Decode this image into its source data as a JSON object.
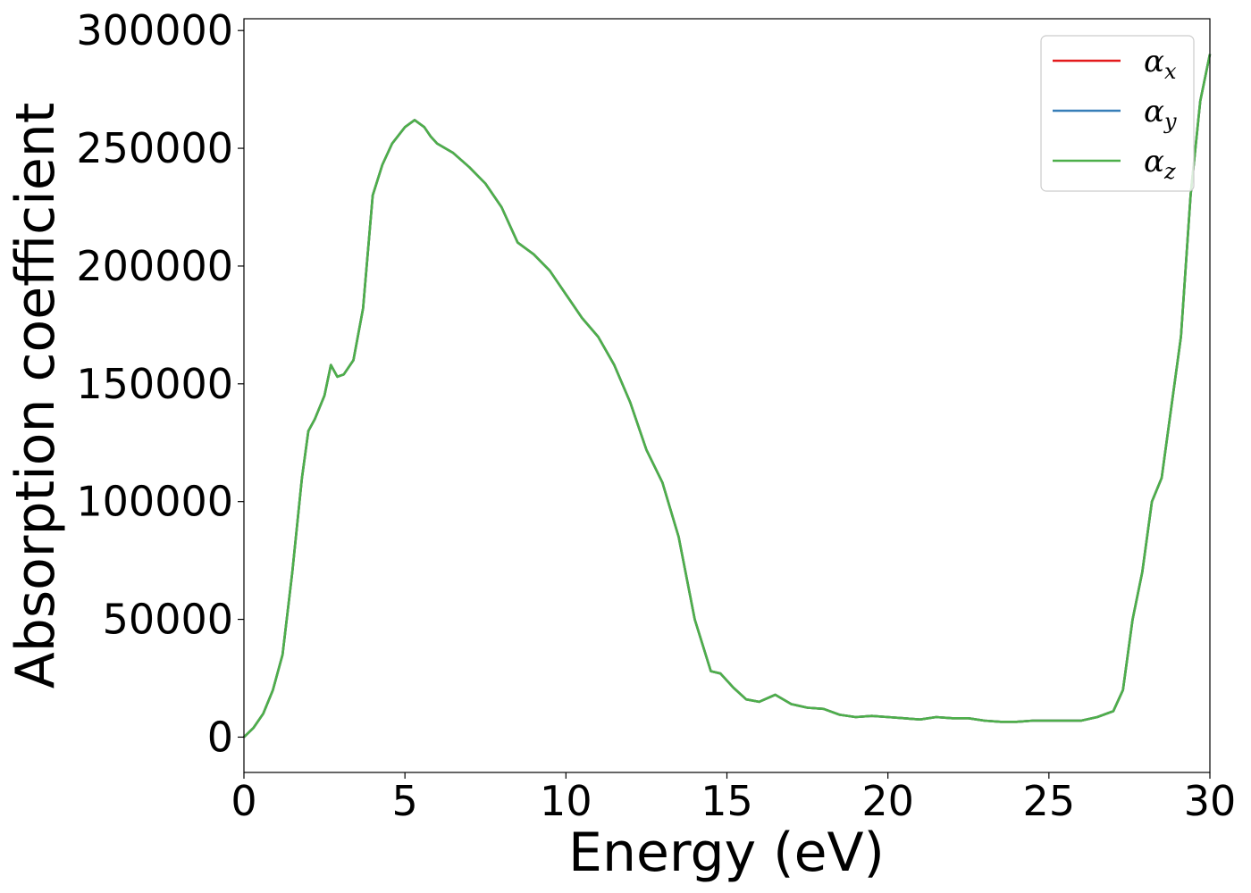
{
  "chart_data": {
    "type": "line",
    "xlabel": "Energy (eV)",
    "ylabel": "Absorption coefficient",
    "xlim": [
      0,
      30
    ],
    "ylim": [
      -15000,
      305000
    ],
    "xticks": [
      0,
      5,
      10,
      15,
      20,
      25,
      30
    ],
    "yticks": [
      0,
      50000,
      100000,
      150000,
      200000,
      250000,
      300000
    ],
    "xtick_labels": [
      "0",
      "5",
      "10",
      "15",
      "20",
      "25",
      "30"
    ],
    "ytick_labels": [
      "0",
      "50000",
      "100000",
      "150000",
      "200000",
      "250000",
      "300000"
    ],
    "grid": false,
    "legend_position": "top-right",
    "series": [
      {
        "name": "α",
        "subscript": "x",
        "color": "#e41a1c",
        "ref": "z"
      },
      {
        "name": "α",
        "subscript": "y",
        "color": "#377eb8",
        "ref": "z"
      },
      {
        "name": "α",
        "subscript": "z",
        "color": "#4daf4a",
        "x": [
          0,
          0.3,
          0.6,
          0.9,
          1.2,
          1.5,
          1.8,
          2.0,
          2.2,
          2.5,
          2.7,
          2.9,
          3.1,
          3.4,
          3.7,
          4.0,
          4.3,
          4.6,
          5.0,
          5.3,
          5.6,
          5.8,
          6.0,
          6.5,
          7.0,
          7.5,
          8.0,
          8.5,
          9.0,
          9.5,
          10.0,
          10.5,
          11.0,
          11.5,
          12.0,
          12.5,
          13.0,
          13.5,
          14.0,
          14.5,
          14.8,
          15.2,
          15.6,
          16.0,
          16.5,
          17.0,
          17.5,
          18.0,
          18.5,
          19.0,
          19.5,
          20.0,
          20.5,
          21.0,
          21.5,
          22.0,
          22.5,
          23.0,
          23.5,
          24.0,
          24.5,
          25.0,
          25.5,
          26.0,
          26.5,
          27.0,
          27.3,
          27.6,
          27.9,
          28.2,
          28.5,
          28.8,
          29.1,
          29.4,
          29.7,
          30.0
        ],
        "y": [
          0,
          4000,
          10000,
          20000,
          35000,
          70000,
          110000,
          130000,
          135000,
          145000,
          158000,
          153000,
          154000,
          160000,
          182000,
          230000,
          243000,
          252000,
          259000,
          262000,
          259000,
          255000,
          252000,
          248000,
          242000,
          235000,
          225000,
          210000,
          205000,
          198000,
          188000,
          178000,
          170000,
          158000,
          142000,
          122000,
          108000,
          85000,
          50000,
          28000,
          27000,
          21000,
          16000,
          15000,
          18000,
          14000,
          12500,
          12000,
          9500,
          8500,
          9000,
          8500,
          8000,
          7500,
          8500,
          8000,
          8000,
          7000,
          6500,
          6500,
          7000,
          7000,
          7000,
          7000,
          8500,
          11000,
          20000,
          50000,
          70000,
          100000,
          110000,
          140000,
          170000,
          230000,
          270000,
          290000
        ]
      }
    ]
  }
}
